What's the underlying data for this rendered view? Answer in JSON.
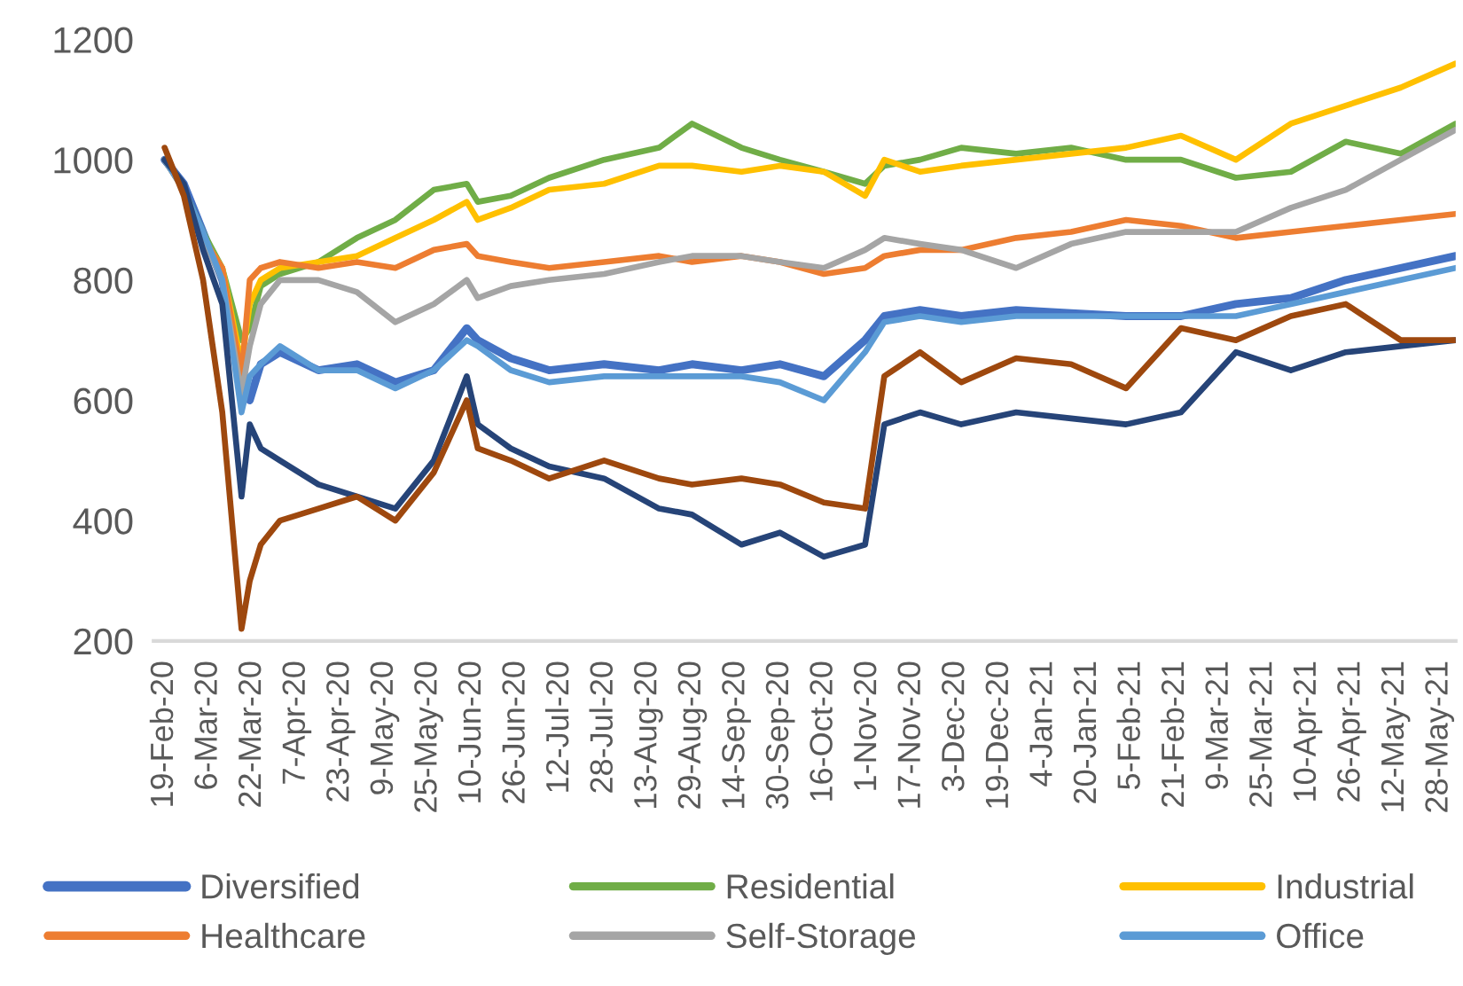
{
  "chart_data": {
    "type": "line",
    "x": [
      "2020-02-19",
      "2020-02-26",
      "2020-03-04",
      "2020-03-11",
      "2020-03-18",
      "2020-03-21",
      "2020-03-25",
      "2020-04-01",
      "2020-04-15",
      "2020-04-29",
      "2020-05-13",
      "2020-05-27",
      "2020-06-08",
      "2020-06-12",
      "2020-06-24",
      "2020-07-08",
      "2020-07-28",
      "2020-08-17",
      "2020-08-29",
      "2020-09-16",
      "2020-09-30",
      "2020-10-16",
      "2020-10-31",
      "2020-11-07",
      "2020-11-20",
      "2020-12-05",
      "2020-12-25",
      "2021-01-14",
      "2021-02-03",
      "2021-02-23",
      "2021-03-15",
      "2021-04-04",
      "2021-04-24",
      "2021-05-14",
      "2021-06-03"
    ],
    "series": [
      {
        "name": "Diversified",
        "color": "#4472c4",
        "values": [
          1000,
          960,
          880,
          800,
          640,
          600,
          660,
          680,
          650,
          660,
          630,
          650,
          720,
          700,
          670,
          650,
          660,
          650,
          660,
          650,
          660,
          640,
          700,
          740,
          750,
          740,
          750,
          745,
          740,
          740,
          760,
          770,
          800,
          820,
          840
        ]
      },
      {
        "name": "Residential",
        "color": "#70ad47",
        "values": [
          1000,
          950,
          880,
          820,
          700,
          720,
          790,
          810,
          830,
          870,
          900,
          950,
          960,
          930,
          940,
          970,
          1000,
          1020,
          1060,
          1020,
          1000,
          980,
          960,
          990,
          1000,
          1020,
          1010,
          1020,
          1000,
          1000,
          970,
          980,
          1030,
          1010,
          1060
        ]
      },
      {
        "name": "Industrial",
        "color": "#ffc000",
        "values": [
          null,
          null,
          870,
          820,
          660,
          760,
          800,
          820,
          830,
          840,
          870,
          900,
          930,
          900,
          920,
          950,
          960,
          990,
          990,
          980,
          990,
          980,
          940,
          1000,
          980,
          990,
          1000,
          1010,
          1020,
          1040,
          1000,
          1060,
          1090,
          1120,
          1160
        ]
      },
      {
        "name": "Healthcare",
        "color": "#ed7d31",
        "values": [
          1000,
          950,
          870,
          820,
          640,
          800,
          820,
          830,
          820,
          830,
          820,
          850,
          860,
          840,
          830,
          820,
          830,
          840,
          830,
          840,
          830,
          810,
          820,
          840,
          850,
          850,
          870,
          880,
          900,
          890,
          870,
          880,
          890,
          900,
          910
        ]
      },
      {
        "name": "Self-Storage",
        "color": "#a5a5a5",
        "values": [
          1000,
          950,
          870,
          800,
          610,
          690,
          760,
          800,
          800,
          780,
          730,
          760,
          800,
          770,
          790,
          800,
          810,
          830,
          840,
          840,
          830,
          820,
          850,
          870,
          860,
          850,
          820,
          860,
          880,
          880,
          880,
          920,
          950,
          1000,
          1050
        ]
      },
      {
        "name": "Office",
        "color": "#5b9bd5",
        "values": [
          1000,
          950,
          880,
          800,
          580,
          640,
          660,
          690,
          650,
          650,
          620,
          650,
          700,
          690,
          650,
          630,
          640,
          640,
          640,
          640,
          630,
          600,
          680,
          730,
          740,
          730,
          740,
          740,
          740,
          740,
          740,
          760,
          780,
          800,
          820
        ]
      },
      {
        "color": "#264478",
        "values": [
          1000,
          960,
          850,
          760,
          440,
          560,
          520,
          500,
          460,
          440,
          420,
          500,
          640,
          560,
          520,
          490,
          470,
          420,
          410,
          360,
          380,
          340,
          360,
          560,
          580,
          560,
          580,
          570,
          560,
          580,
          680,
          650,
          680,
          690,
          700
        ]
      },
      {
        "color": "#9e480e",
        "values": [
          1020,
          940,
          800,
          580,
          220,
          300,
          360,
          400,
          420,
          440,
          400,
          480,
          600,
          520,
          500,
          470,
          500,
          470,
          460,
          470,
          460,
          430,
          420,
          640,
          680,
          630,
          670,
          660,
          620,
          720,
          700,
          740,
          760,
          700,
          700
        ]
      }
    ],
    "xlim": [
      "2020-02-15",
      "2021-06-03"
    ],
    "xticks": [
      {
        "value": "2020-02-19",
        "label": "19-Feb-20"
      },
      {
        "value": "2020-03-06",
        "label": "6-Mar-20"
      },
      {
        "value": "2020-03-22",
        "label": "22-Mar-20"
      },
      {
        "value": "2020-04-07",
        "label": "7-Apr-20"
      },
      {
        "value": "2020-04-23",
        "label": "23-Apr-20"
      },
      {
        "value": "2020-05-09",
        "label": "9-May-20"
      },
      {
        "value": "2020-05-25",
        "label": "25-May-20"
      },
      {
        "value": "2020-06-10",
        "label": "10-Jun-20"
      },
      {
        "value": "2020-06-26",
        "label": "26-Jun-20"
      },
      {
        "value": "2020-07-12",
        "label": "12-Jul-20"
      },
      {
        "value": "2020-07-28",
        "label": "28-Jul-20"
      },
      {
        "value": "2020-08-13",
        "label": "13-Aug-20"
      },
      {
        "value": "2020-08-29",
        "label": "29-Aug-20"
      },
      {
        "value": "2020-09-14",
        "label": "14-Sep-20"
      },
      {
        "value": "2020-09-30",
        "label": "30-Sep-20"
      },
      {
        "value": "2020-10-16",
        "label": "16-Oct-20"
      },
      {
        "value": "2020-11-01",
        "label": "1-Nov-20"
      },
      {
        "value": "2020-11-17",
        "label": "17-Nov-20"
      },
      {
        "value": "2020-12-03",
        "label": "3-Dec-20"
      },
      {
        "value": "2020-12-19",
        "label": "19-Dec-20"
      },
      {
        "value": "2021-01-04",
        "label": "4-Jan-21"
      },
      {
        "value": "2021-01-20",
        "label": "20-Jan-21"
      },
      {
        "value": "2021-02-05",
        "label": "5-Feb-21"
      },
      {
        "value": "2021-02-21",
        "label": "21-Feb-21"
      },
      {
        "value": "2021-03-09",
        "label": "9-Mar-21"
      },
      {
        "value": "2021-03-25",
        "label": "25-Mar-21"
      },
      {
        "value": "2021-04-10",
        "label": "10-Apr-21"
      },
      {
        "value": "2021-04-26",
        "label": "26-Apr-21"
      },
      {
        "value": "2021-05-12",
        "label": "12-May-21"
      },
      {
        "value": "2021-05-28",
        "label": "28-May-21"
      }
    ],
    "ylim": [
      200,
      1200
    ],
    "yticks": [
      200,
      400,
      600,
      800,
      1000,
      1200
    ],
    "grid": false,
    "legend": "bottom",
    "marker": "none",
    "line_style": "solid"
  }
}
